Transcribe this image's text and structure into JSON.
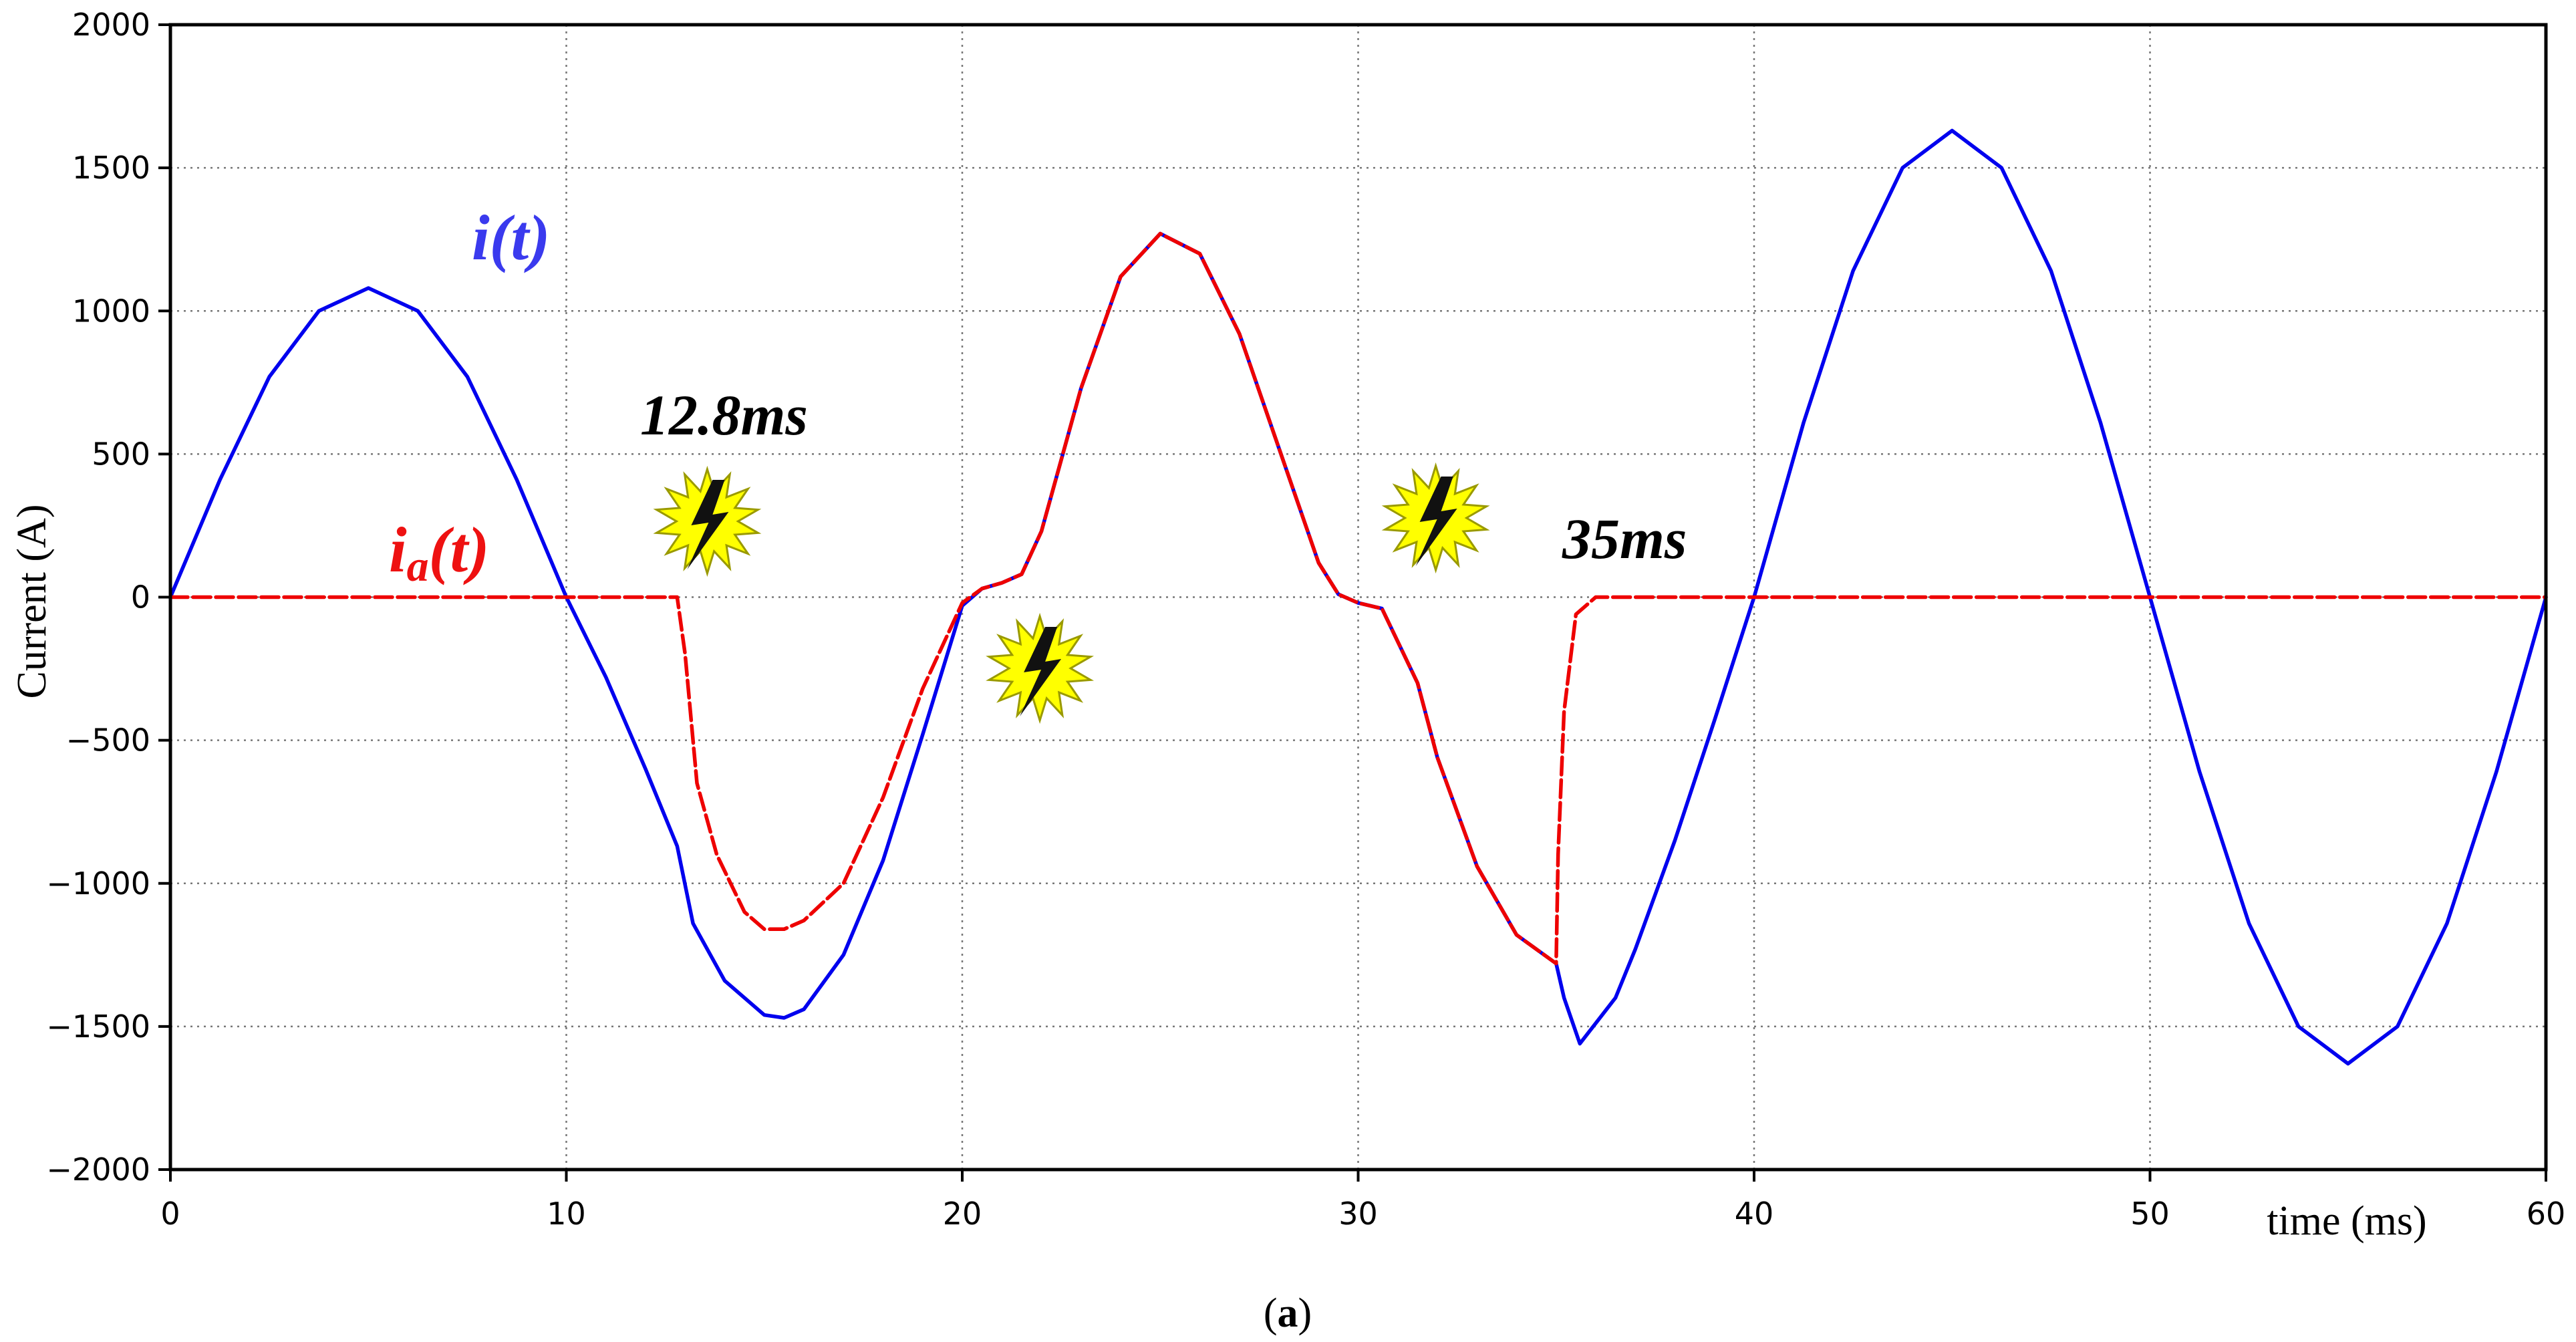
{
  "chart_data": {
    "type": "line",
    "xlabel": "time (ms)",
    "ylabel": "Current (A)",
    "xlim": [
      0,
      60
    ],
    "ylim": [
      -2000,
      2000
    ],
    "xticks": [
      0,
      10,
      20,
      30,
      40,
      50,
      60
    ],
    "yticks": [
      -2000,
      -1500,
      -1000,
      -500,
      0,
      500,
      1000,
      1500,
      2000
    ],
    "ytick_labels": [
      "−2000",
      "−1500",
      "−1000",
      "−500",
      "0",
      "500",
      "1000",
      "1500",
      "2000"
    ],
    "grid": true,
    "series": [
      {
        "name": "i(t)",
        "color": "#0000ee",
        "style": "solid",
        "points": [
          [
            0,
            0
          ],
          [
            1.25,
            410
          ],
          [
            2.5,
            770
          ],
          [
            3.75,
            1000
          ],
          [
            5,
            1080
          ],
          [
            6.25,
            1000
          ],
          [
            7.5,
            770
          ],
          [
            8.75,
            410
          ],
          [
            10,
            0
          ],
          [
            11,
            -280
          ],
          [
            12,
            -600
          ],
          [
            12.8,
            -870
          ],
          [
            13.2,
            -1140
          ],
          [
            14,
            -1340
          ],
          [
            15,
            -1460
          ],
          [
            15.5,
            -1470
          ],
          [
            16,
            -1440
          ],
          [
            17,
            -1250
          ],
          [
            18,
            -920
          ],
          [
            19,
            -480
          ],
          [
            20,
            -30
          ],
          [
            20.5,
            30
          ],
          [
            21,
            50
          ],
          [
            21.5,
            80
          ],
          [
            22,
            230
          ],
          [
            23,
            730
          ],
          [
            24,
            1120
          ],
          [
            25,
            1270
          ],
          [
            26,
            1200
          ],
          [
            27,
            920
          ],
          [
            28,
            520
          ],
          [
            29,
            120
          ],
          [
            29.5,
            10
          ],
          [
            30,
            -20
          ],
          [
            30.6,
            -40
          ],
          [
            31.5,
            -300
          ],
          [
            32,
            -560
          ],
          [
            33,
            -940
          ],
          [
            34,
            -1180
          ],
          [
            35,
            -1280
          ],
          [
            35.2,
            -1400
          ],
          [
            35.6,
            -1560
          ],
          [
            36.5,
            -1400
          ],
          [
            37,
            -1230
          ],
          [
            38,
            -850
          ],
          [
            39,
            -430
          ],
          [
            40,
            0
          ],
          [
            41.25,
            610
          ],
          [
            42.5,
            1140
          ],
          [
            43.75,
            1500
          ],
          [
            45,
            1630
          ],
          [
            46.25,
            1500
          ],
          [
            47.5,
            1140
          ],
          [
            48.75,
            610
          ],
          [
            50,
            0
          ],
          [
            51.25,
            -610
          ],
          [
            52.5,
            -1140
          ],
          [
            53.75,
            -1500
          ],
          [
            55,
            -1630
          ],
          [
            56.25,
            -1500
          ],
          [
            57.5,
            -1140
          ],
          [
            58.75,
            -610
          ],
          [
            60,
            0
          ]
        ]
      },
      {
        "name": "ia(t)",
        "color": "#ee0000",
        "style": "dashed",
        "points": [
          [
            0,
            0
          ],
          [
            12.8,
            0
          ],
          [
            13,
            -200
          ],
          [
            13.3,
            -650
          ],
          [
            13.8,
            -900
          ],
          [
            14.5,
            -1100
          ],
          [
            15,
            -1160
          ],
          [
            15.5,
            -1160
          ],
          [
            16,
            -1130
          ],
          [
            17,
            -1000
          ],
          [
            18,
            -700
          ],
          [
            19,
            -320
          ],
          [
            20,
            -20
          ],
          [
            20.5,
            30
          ],
          [
            21,
            50
          ],
          [
            21.5,
            80
          ],
          [
            22,
            230
          ],
          [
            23,
            730
          ],
          [
            24,
            1120
          ],
          [
            25,
            1270
          ],
          [
            26,
            1200
          ],
          [
            27,
            920
          ],
          [
            28,
            520
          ],
          [
            29,
            120
          ],
          [
            29.5,
            10
          ],
          [
            30,
            -20
          ],
          [
            30.6,
            -40
          ],
          [
            31.5,
            -300
          ],
          [
            32,
            -560
          ],
          [
            33,
            -940
          ],
          [
            34,
            -1180
          ],
          [
            35,
            -1280
          ],
          [
            35.05,
            -900
          ],
          [
            35.2,
            -400
          ],
          [
            35.5,
            -60
          ],
          [
            36,
            0
          ],
          [
            60,
            0
          ]
        ]
      }
    ],
    "annotations": [
      {
        "text": "12.8ms",
        "x": 12.8
      },
      {
        "text": "35ms",
        "x": 35
      }
    ],
    "fault_markers": [
      {
        "x": 12.8,
        "icon": "lightning-icon"
      },
      {
        "x": 21.2,
        "icon": "lightning-icon"
      },
      {
        "x": 31.2,
        "icon": "lightning-icon"
      }
    ]
  },
  "labels": {
    "i_main": "i",
    "i_paren": "(t)",
    "ia_main": "i",
    "ia_sub": "a",
    "ia_paren": "(t)",
    "ann_128": "12.8ms",
    "ann_35": "35ms",
    "caption_open": "(",
    "caption_letter": "a",
    "caption_close": ")"
  }
}
